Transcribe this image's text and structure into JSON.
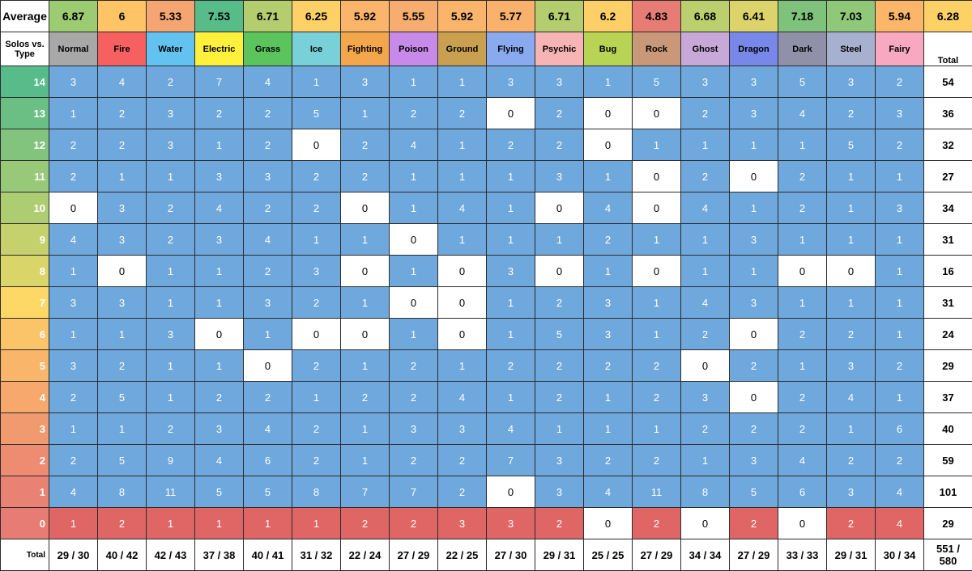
{
  "labels": {
    "average": "Average",
    "corner_line1": "Solos vs.",
    "corner_line2": "Type",
    "total_header": "Total",
    "total_row_label": "Total",
    "grand_total_line1": "551 /",
    "grand_total_line2": "580"
  },
  "colors": {
    "blue_cell": "#6fa8dc",
    "red_cell": "#e06666",
    "zero_cell": "#ffffff",
    "grid": "#2b2b2b"
  },
  "chart_data": {
    "type": "table",
    "types": [
      {
        "name": "Normal",
        "color": "#a8a8a8",
        "average": "6.87",
        "avg_color": "#9ccc72",
        "total": "29 / 30"
      },
      {
        "name": "Fire",
        "color": "#f66060",
        "average": "6",
        "avg_color": "#fec466",
        "total": "40 / 42"
      },
      {
        "name": "Water",
        "color": "#62c2f0",
        "average": "5.33",
        "avg_color": "#f4a571",
        "total": "42 / 43"
      },
      {
        "name": "Electric",
        "color": "#fff03c",
        "average": "7.53",
        "avg_color": "#57bb8a",
        "total": "37 / 38"
      },
      {
        "name": "Grass",
        "color": "#5cc45c",
        "average": "6.71",
        "avg_color": "#b4cd6e",
        "total": "40 / 41"
      },
      {
        "name": "Ice",
        "color": "#78d0d8",
        "average": "6.25",
        "avg_color": "#fed167",
        "total": "31 / 32"
      },
      {
        "name": "Fighting",
        "color": "#f4a64c",
        "average": "5.92",
        "avg_color": "#fbb56a",
        "total": "22 / 24"
      },
      {
        "name": "Poison",
        "color": "#c78ae8",
        "average": "5.55",
        "avg_color": "#f6ad6f",
        "total": "27 / 29"
      },
      {
        "name": "Ground",
        "color": "#c8a050",
        "average": "5.92",
        "avg_color": "#fbb56a",
        "total": "22 / 25"
      },
      {
        "name": "Flying",
        "color": "#8aaaf0",
        "average": "5.77",
        "avg_color": "#f9b16c",
        "total": "27 / 30"
      },
      {
        "name": "Psychic",
        "color": "#f7b4b4",
        "average": "6.71",
        "avg_color": "#b4cd6e",
        "total": "29 / 31"
      },
      {
        "name": "Bug",
        "color": "#b8d454",
        "average": "6.2",
        "avg_color": "#fecf67",
        "total": "25 / 25"
      },
      {
        "name": "Rock",
        "color": "#c89878",
        "average": "4.83",
        "avg_color": "#e67c73",
        "total": "27 / 29"
      },
      {
        "name": "Ghost",
        "color": "#c8a8d8",
        "average": "6.68",
        "avg_color": "#bccf6e",
        "total": "34 / 34"
      },
      {
        "name": "Dragon",
        "color": "#7888e8",
        "average": "6.41",
        "avg_color": "#dcd46a",
        "total": "27 / 29"
      },
      {
        "name": "Dark",
        "color": "#9090a8",
        "average": "7.18",
        "avg_color": "#7ec27c",
        "total": "33 / 33"
      },
      {
        "name": "Steel",
        "color": "#a8b0d0",
        "average": "7.03",
        "avg_color": "#8ec878",
        "total": "29 / 31"
      },
      {
        "name": "Fairy",
        "color": "#f8a8c0",
        "average": "5.94",
        "avg_color": "#fbb669",
        "total": "30 / 34"
      }
    ],
    "overall_average": "6.28",
    "overall_average_color": "#fed167",
    "rows": [
      {
        "level": "14",
        "color": "#57bb8a",
        "values": [
          3,
          4,
          2,
          7,
          4,
          1,
          3,
          1,
          1,
          3,
          3,
          1,
          5,
          3,
          3,
          5,
          3,
          2
        ],
        "total": 54
      },
      {
        "level": "13",
        "color": "#6cbf84",
        "values": [
          1,
          2,
          3,
          2,
          2,
          5,
          1,
          2,
          2,
          0,
          2,
          0,
          0,
          2,
          3,
          4,
          2,
          3
        ],
        "total": 36
      },
      {
        "level": "12",
        "color": "#82c47e",
        "values": [
          2,
          2,
          3,
          1,
          2,
          0,
          2,
          4,
          1,
          2,
          2,
          0,
          1,
          1,
          1,
          1,
          5,
          2
        ],
        "total": 32
      },
      {
        "level": "11",
        "color": "#98c978",
        "values": [
          2,
          1,
          1,
          3,
          3,
          2,
          2,
          1,
          1,
          1,
          3,
          1,
          0,
          2,
          0,
          2,
          1,
          1
        ],
        "total": 27
      },
      {
        "level": "10",
        "color": "#aecd72",
        "values": [
          0,
          3,
          2,
          4,
          2,
          2,
          0,
          1,
          4,
          1,
          0,
          4,
          0,
          4,
          1,
          2,
          1,
          3
        ],
        "total": 34
      },
      {
        "level": "9",
        "color": "#c4d16d",
        "values": [
          4,
          3,
          2,
          3,
          4,
          1,
          1,
          0,
          1,
          1,
          1,
          2,
          1,
          1,
          3,
          1,
          1,
          1
        ],
        "total": 31
      },
      {
        "level": "8",
        "color": "#dad569",
        "values": [
          1,
          0,
          1,
          1,
          2,
          3,
          0,
          1,
          0,
          3,
          0,
          1,
          0,
          1,
          1,
          0,
          0,
          1
        ],
        "total": 16
      },
      {
        "level": "7",
        "color": "#fed866",
        "values": [
          3,
          3,
          1,
          1,
          3,
          2,
          1,
          0,
          0,
          1,
          2,
          3,
          1,
          4,
          3,
          1,
          1,
          1
        ],
        "total": 31
      },
      {
        "level": "6",
        "color": "#fcc468",
        "values": [
          1,
          1,
          3,
          0,
          1,
          0,
          0,
          1,
          0,
          1,
          5,
          3,
          1,
          2,
          0,
          2,
          2,
          1
        ],
        "total": 24
      },
      {
        "level": "5",
        "color": "#f9b66a",
        "values": [
          3,
          2,
          1,
          1,
          0,
          2,
          1,
          2,
          1,
          2,
          2,
          2,
          2,
          0,
          2,
          1,
          3,
          2
        ],
        "total": 29
      },
      {
        "level": "4",
        "color": "#f6a86d",
        "values": [
          2,
          5,
          1,
          2,
          2,
          1,
          2,
          2,
          4,
          1,
          2,
          1,
          2,
          3,
          0,
          2,
          4,
          1
        ],
        "total": 37
      },
      {
        "level": "3",
        "color": "#f29a6f",
        "values": [
          1,
          1,
          2,
          3,
          4,
          2,
          1,
          3,
          3,
          4,
          1,
          1,
          1,
          2,
          2,
          2,
          1,
          6
        ],
        "total": 40
      },
      {
        "level": "2",
        "color": "#ee8c71",
        "values": [
          2,
          5,
          9,
          4,
          6,
          2,
          1,
          2,
          2,
          7,
          3,
          2,
          2,
          1,
          3,
          4,
          2,
          2
        ],
        "total": 59
      },
      {
        "level": "1",
        "color": "#ea8273",
        "values": [
          4,
          8,
          11,
          5,
          5,
          8,
          7,
          7,
          2,
          0,
          3,
          4,
          11,
          8,
          5,
          6,
          3,
          4
        ],
        "total": 101
      },
      {
        "level": "0",
        "color": "#e67c73",
        "values": [
          1,
          2,
          1,
          1,
          1,
          1,
          2,
          2,
          3,
          3,
          2,
          0,
          2,
          0,
          2,
          0,
          2,
          4
        ],
        "total": 29
      }
    ]
  }
}
